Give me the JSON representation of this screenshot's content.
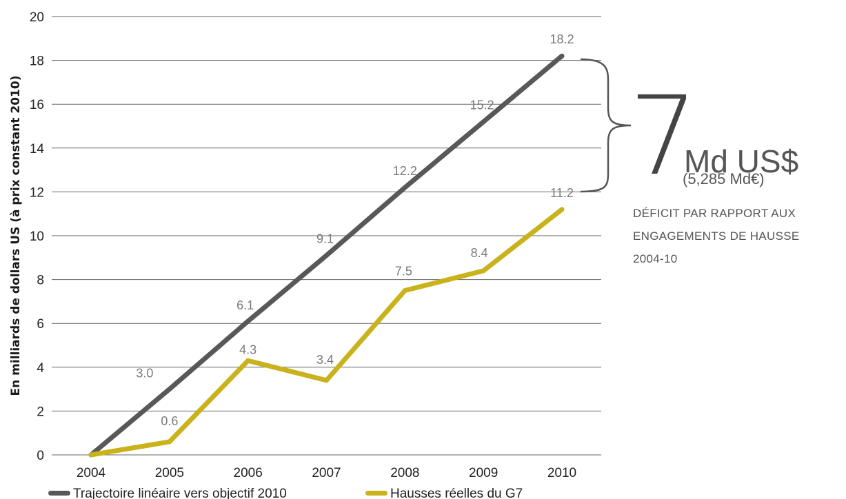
{
  "chart_data": {
    "type": "line",
    "x": [
      "2004",
      "2005",
      "2006",
      "2007",
      "2008",
      "2009",
      "2010"
    ],
    "series": [
      {
        "name": "Trajectoire linéaire vers objectif 2010",
        "color": "#58585a",
        "values": [
          0,
          3.0,
          6.1,
          9.1,
          12.2,
          15.2,
          18.2
        ],
        "labels": [
          "",
          "3.0",
          "6.1",
          "9.1",
          "12.2",
          "15.2",
          "18.2"
        ]
      },
      {
        "name": "Hausses réelles du G7",
        "color": "#c9b21c",
        "values": [
          0,
          0.6,
          4.3,
          3.4,
          7.5,
          8.4,
          11.2
        ],
        "labels": [
          "",
          "0.6",
          "4.3",
          "3.4",
          "7.5",
          "8.4",
          "11.2"
        ]
      }
    ],
    "ylabel": "En milliards de dollars US (à prix constant 2010)",
    "xlabel": "",
    "ylim": [
      0,
      20
    ],
    "yticks": [
      0,
      2,
      4,
      6,
      8,
      10,
      12,
      14,
      16,
      18,
      20
    ],
    "ytick_labels": [
      "0",
      "2",
      "4",
      "6",
      "8",
      "10",
      "12",
      "14",
      "16",
      "18",
      "20"
    ],
    "grid": true,
    "legend": "bottom"
  },
  "annotation": {
    "big_number": "7",
    "unit": "Md US$",
    "euro": "(5,285 Md€)",
    "description_lines": [
      "DÉFICIT PAR RAPPORT AUX",
      "ENGAGEMENTS DE HAUSSE",
      "2004-10"
    ],
    "bracket_color": "#555555"
  }
}
